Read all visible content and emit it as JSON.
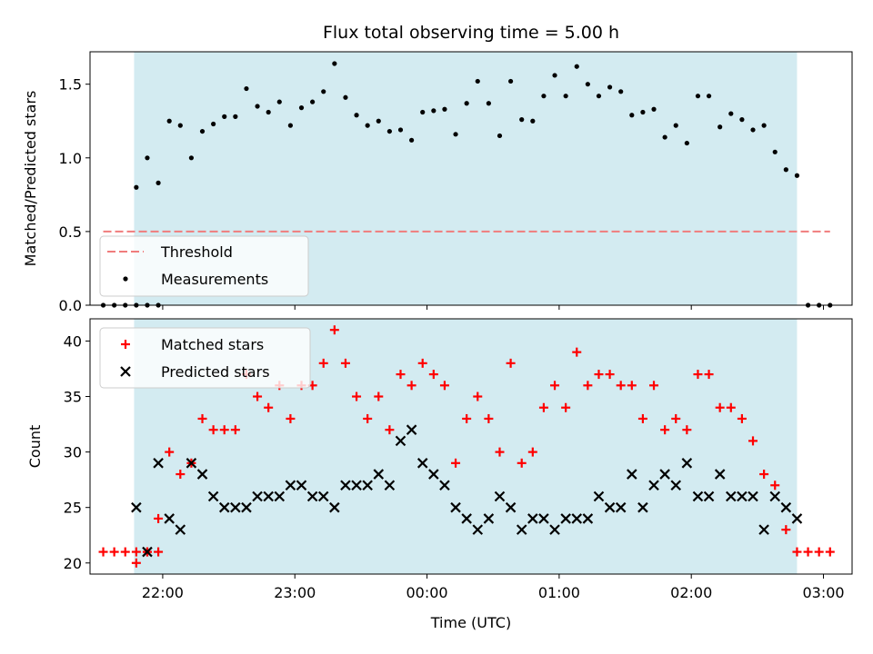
{
  "chart_data": [
    {
      "type": "scatter",
      "title": "Flux total observing time = 5.00 h",
      "xlabel": "",
      "ylabel": "Matched/Predicted stars",
      "ylim": [
        0,
        1.72
      ],
      "yticks": [
        0.0,
        0.5,
        1.0,
        1.5
      ],
      "ytick_labels": [
        "0.0",
        "0.5",
        "1.0",
        "1.5"
      ],
      "x_time_range": [
        "21:27",
        "03:13"
      ],
      "shaded_span": [
        "21:47",
        "02:48"
      ],
      "shade_color": "#d3ebf1",
      "legend_position": "lower-left",
      "threshold": {
        "name": "Threshold",
        "value": 0.5,
        "x_range": [
          "21:33",
          "03:03"
        ],
        "color": "#f07c7c"
      },
      "series": [
        {
          "name": "Measurements",
          "marker": "dot",
          "color": "#000000",
          "points": [
            [
              "21:33",
              0.0
            ],
            [
              "21:38",
              0.0
            ],
            [
              "21:43",
              0.0
            ],
            [
              "21:48",
              0.0
            ],
            [
              "21:53",
              0.0
            ],
            [
              "21:58",
              0.0
            ],
            [
              "21:48",
              0.8
            ],
            [
              "21:53",
              1.0
            ],
            [
              "21:58",
              0.83
            ],
            [
              "22:03",
              1.25
            ],
            [
              "22:08",
              1.22
            ],
            [
              "22:13",
              1.0
            ],
            [
              "22:18",
              1.18
            ],
            [
              "22:23",
              1.23
            ],
            [
              "22:28",
              1.28
            ],
            [
              "22:33",
              1.28
            ],
            [
              "22:38",
              1.47
            ],
            [
              "22:43",
              1.35
            ],
            [
              "22:48",
              1.31
            ],
            [
              "22:53",
              1.38
            ],
            [
              "22:58",
              1.22
            ],
            [
              "23:03",
              1.34
            ],
            [
              "23:08",
              1.38
            ],
            [
              "23:13",
              1.45
            ],
            [
              "23:18",
              1.64
            ],
            [
              "23:23",
              1.41
            ],
            [
              "23:28",
              1.29
            ],
            [
              "23:33",
              1.22
            ],
            [
              "23:38",
              1.25
            ],
            [
              "23:43",
              1.18
            ],
            [
              "23:48",
              1.19
            ],
            [
              "23:53",
              1.12
            ],
            [
              "23:58",
              1.31
            ],
            [
              "00:03",
              1.32
            ],
            [
              "00:08",
              1.33
            ],
            [
              "00:13",
              1.16
            ],
            [
              "00:18",
              1.37
            ],
            [
              "00:23",
              1.52
            ],
            [
              "00:28",
              1.37
            ],
            [
              "00:33",
              1.15
            ],
            [
              "00:38",
              1.52
            ],
            [
              "00:43",
              1.26
            ],
            [
              "00:48",
              1.25
            ],
            [
              "00:53",
              1.42
            ],
            [
              "00:58",
              1.56
            ],
            [
              "01:03",
              1.42
            ],
            [
              "01:08",
              1.62
            ],
            [
              "01:13",
              1.5
            ],
            [
              "01:18",
              1.42
            ],
            [
              "01:23",
              1.48
            ],
            [
              "01:28",
              1.45
            ],
            [
              "01:33",
              1.29
            ],
            [
              "01:38",
              1.31
            ],
            [
              "01:43",
              1.33
            ],
            [
              "01:48",
              1.14
            ],
            [
              "01:53",
              1.22
            ],
            [
              "01:58",
              1.1
            ],
            [
              "02:03",
              1.42
            ],
            [
              "02:08",
              1.42
            ],
            [
              "02:13",
              1.21
            ],
            [
              "02:18",
              1.3
            ],
            [
              "02:23",
              1.26
            ],
            [
              "02:28",
              1.19
            ],
            [
              "02:33",
              1.22
            ],
            [
              "02:38",
              1.04
            ],
            [
              "02:43",
              0.92
            ],
            [
              "02:48",
              0.88
            ],
            [
              "02:53",
              0.0
            ],
            [
              "02:58",
              0.0
            ],
            [
              "03:03",
              0.0
            ]
          ]
        }
      ]
    },
    {
      "type": "scatter",
      "title": "",
      "xlabel": "Time (UTC)",
      "ylabel": "Count",
      "ylim": [
        19,
        42
      ],
      "yticks": [
        20,
        25,
        30,
        35,
        40
      ],
      "ytick_labels": [
        "20",
        "25",
        "30",
        "35",
        "40"
      ],
      "x_time_range": [
        "21:27",
        "03:13"
      ],
      "xticks": [
        "22:00",
        "23:00",
        "00:00",
        "01:00",
        "02:00",
        "03:00"
      ],
      "shaded_span": [
        "21:47",
        "02:48"
      ],
      "shade_color": "#d3ebf1",
      "legend_position": "upper-left",
      "series": [
        {
          "name": "Matched stars",
          "marker": "plus",
          "color": "#ff0000",
          "points": [
            [
              "21:33",
              21
            ],
            [
              "21:38",
              21
            ],
            [
              "21:43",
              21
            ],
            [
              "21:48",
              21
            ],
            [
              "21:53",
              21
            ],
            [
              "21:58",
              21
            ],
            [
              "21:48",
              20
            ],
            [
              "21:53",
              21
            ],
            [
              "21:58",
              24
            ],
            [
              "22:03",
              30
            ],
            [
              "22:08",
              28
            ],
            [
              "22:13",
              29
            ],
            [
              "22:18",
              33
            ],
            [
              "22:23",
              32
            ],
            [
              "22:28",
              32
            ],
            [
              "22:33",
              32
            ],
            [
              "22:38",
              37
            ],
            [
              "22:43",
              35
            ],
            [
              "22:48",
              34
            ],
            [
              "22:53",
              36
            ],
            [
              "22:58",
              33
            ],
            [
              "23:03",
              36
            ],
            [
              "23:08",
              36
            ],
            [
              "23:13",
              38
            ],
            [
              "23:18",
              41
            ],
            [
              "23:23",
              38
            ],
            [
              "23:28",
              35
            ],
            [
              "23:33",
              33
            ],
            [
              "23:38",
              35
            ],
            [
              "23:43",
              32
            ],
            [
              "23:48",
              37
            ],
            [
              "23:53",
              36
            ],
            [
              "23:58",
              38
            ],
            [
              "00:03",
              37
            ],
            [
              "00:08",
              36
            ],
            [
              "00:13",
              29
            ],
            [
              "00:18",
              33
            ],
            [
              "00:23",
              35
            ],
            [
              "00:28",
              33
            ],
            [
              "00:33",
              30
            ],
            [
              "00:38",
              38
            ],
            [
              "00:43",
              29
            ],
            [
              "00:48",
              30
            ],
            [
              "00:53",
              34
            ],
            [
              "00:58",
              36
            ],
            [
              "01:03",
              34
            ],
            [
              "01:08",
              39
            ],
            [
              "01:13",
              36
            ],
            [
              "01:18",
              37
            ],
            [
              "01:23",
              37
            ],
            [
              "01:28",
              36
            ],
            [
              "01:33",
              36
            ],
            [
              "01:38",
              33
            ],
            [
              "01:43",
              36
            ],
            [
              "01:48",
              32
            ],
            [
              "01:53",
              33
            ],
            [
              "01:58",
              32
            ],
            [
              "02:03",
              37
            ],
            [
              "02:08",
              37
            ],
            [
              "02:13",
              34
            ],
            [
              "02:18",
              34
            ],
            [
              "02:23",
              33
            ],
            [
              "02:28",
              31
            ],
            [
              "02:33",
              28
            ],
            [
              "02:38",
              27
            ],
            [
              "02:43",
              23
            ],
            [
              "02:48",
              21
            ],
            [
              "02:53",
              21
            ],
            [
              "02:58",
              21
            ],
            [
              "03:03",
              21
            ]
          ]
        },
        {
          "name": "Predicted stars",
          "marker": "x",
          "color": "#000000",
          "points": [
            [
              "21:48",
              25
            ],
            [
              "21:53",
              21
            ],
            [
              "21:58",
              29
            ],
            [
              "22:03",
              24
            ],
            [
              "22:08",
              23
            ],
            [
              "22:13",
              29
            ],
            [
              "22:18",
              28
            ],
            [
              "22:23",
              26
            ],
            [
              "22:28",
              25
            ],
            [
              "22:33",
              25
            ],
            [
              "22:38",
              25
            ],
            [
              "22:43",
              26
            ],
            [
              "22:48",
              26
            ],
            [
              "22:53",
              26
            ],
            [
              "22:58",
              27
            ],
            [
              "23:03",
              27
            ],
            [
              "23:08",
              26
            ],
            [
              "23:13",
              26
            ],
            [
              "23:18",
              25
            ],
            [
              "23:23",
              27
            ],
            [
              "23:28",
              27
            ],
            [
              "23:33",
              27
            ],
            [
              "23:38",
              28
            ],
            [
              "23:43",
              27
            ],
            [
              "23:48",
              31
            ],
            [
              "23:53",
              32
            ],
            [
              "23:58",
              29
            ],
            [
              "00:03",
              28
            ],
            [
              "00:08",
              27
            ],
            [
              "00:13",
              25
            ],
            [
              "00:18",
              24
            ],
            [
              "00:23",
              23
            ],
            [
              "00:28",
              24
            ],
            [
              "00:33",
              26
            ],
            [
              "00:38",
              25
            ],
            [
              "00:43",
              23
            ],
            [
              "00:48",
              24
            ],
            [
              "00:53",
              24
            ],
            [
              "00:58",
              23
            ],
            [
              "01:03",
              24
            ],
            [
              "01:08",
              24
            ],
            [
              "01:13",
              24
            ],
            [
              "01:18",
              26
            ],
            [
              "01:23",
              25
            ],
            [
              "01:28",
              25
            ],
            [
              "01:33",
              28
            ],
            [
              "01:38",
              25
            ],
            [
              "01:43",
              27
            ],
            [
              "01:48",
              28
            ],
            [
              "01:53",
              27
            ],
            [
              "01:58",
              29
            ],
            [
              "02:03",
              26
            ],
            [
              "02:08",
              26
            ],
            [
              "02:13",
              28
            ],
            [
              "02:18",
              26
            ],
            [
              "02:23",
              26
            ],
            [
              "02:28",
              26
            ],
            [
              "02:33",
              23
            ],
            [
              "02:38",
              26
            ],
            [
              "02:43",
              25
            ],
            [
              "02:48",
              24
            ]
          ]
        }
      ]
    }
  ]
}
